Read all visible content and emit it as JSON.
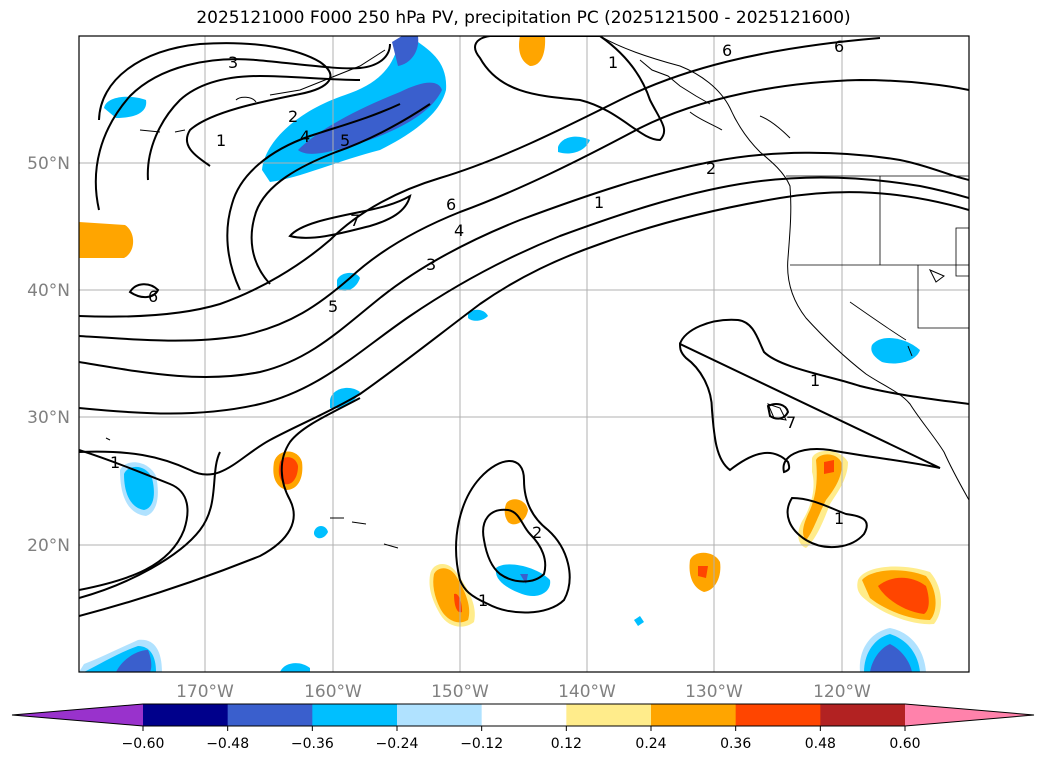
{
  "title": "2025121000 F000 250 hPa PV, precipitation PC (2025121500 - 2025121600)",
  "map": {
    "projection": "PlateCarree",
    "extent": {
      "lon_min": -180,
      "lon_max": -110,
      "lat_min": 10,
      "lat_max": 60
    },
    "lat_ticks": [
      "20°N",
      "30°N",
      "40°N",
      "50°N"
    ],
    "lon_ticks": [
      "170°W",
      "160°W",
      "150°W",
      "140°W",
      "130°W",
      "120°W"
    ],
    "grid": true,
    "tick_label_color": "#808080"
  },
  "contours": {
    "field": "250 hPa PV",
    "labels": [
      "3",
      "2",
      "1",
      "4",
      "5",
      "6",
      "7",
      "6",
      "5",
      "3",
      "4",
      "6",
      "2",
      "1",
      "1",
      "7",
      "1",
      "2",
      "1",
      "1",
      "6",
      "1"
    ]
  },
  "colorbar": {
    "tick_labels": [
      "−0.60",
      "−0.48",
      "−0.36",
      "−0.24",
      "−0.12",
      "0.12",
      "0.24",
      "0.36",
      "0.48",
      "0.60"
    ],
    "colors": [
      "#9932cc",
      "#00008b",
      "#3a5fcd",
      "#00bfff",
      "#b0e2ff",
      "#ffffff",
      "#ffec8b",
      "#ffa500",
      "#ff4500",
      "#b22222",
      "#ff82ab"
    ],
    "extend": "both"
  },
  "precip_colors": {
    "light_blue": "#b0e2ff",
    "sky_blue": "#00bfff",
    "royal_blue": "#3a5fcd",
    "light_yellow": "#ffec8b",
    "orange": "#ffa500",
    "red_orange": "#ff4500"
  }
}
